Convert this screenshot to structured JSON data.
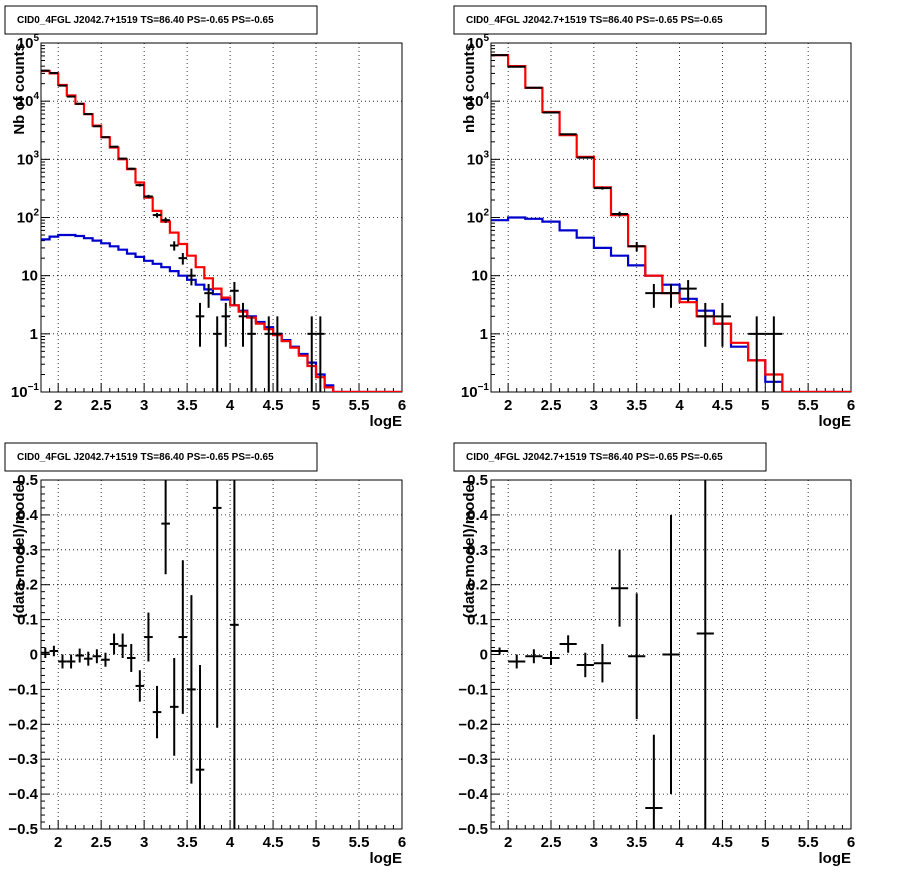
{
  "colors": {
    "data": "#000000",
    "model_total": "#ff0000",
    "model_background": "#0000cc",
    "grid": "#000000"
  },
  "chart_data": [
    {
      "type": "line",
      "panel": "top-left",
      "title": "CID0_4FGL J2042.7+1519 TS=86.40 PS=-0.65 PS=-0.65",
      "xlabel": "logE",
      "ylabel": "Nb of counts",
      "yscale": "log",
      "xlim": [
        1.8,
        6
      ],
      "ylim": [
        0.1,
        100000
      ],
      "grid": true,
      "xticks": [
        "2",
        "2.5",
        "3",
        "3.5",
        "4",
        "4.5",
        "5",
        "5.5",
        "6"
      ],
      "yticks": [
        {
          "value": 0.1,
          "label": "10",
          "sup": "−1"
        },
        {
          "value": 1,
          "label": "1",
          "sup": ""
        },
        {
          "value": 10,
          "label": "10",
          "sup": ""
        },
        {
          "value": 100,
          "label": "10",
          "sup": "2"
        },
        {
          "value": 1000,
          "label": "10",
          "sup": "3"
        },
        {
          "value": 10000,
          "label": "10",
          "sup": "4"
        },
        {
          "value": 100000,
          "label": "10",
          "sup": "5"
        }
      ],
      "bin_edges": [
        1.8,
        1.9,
        2.0,
        2.1,
        2.2,
        2.3,
        2.4,
        2.5,
        2.6,
        2.7,
        2.8,
        2.9,
        3.0,
        3.1,
        3.2,
        3.3,
        3.4,
        3.5,
        3.6,
        3.7,
        3.8,
        3.9,
        4.0,
        4.1,
        4.2,
        4.3,
        4.4,
        4.5,
        4.6,
        4.7,
        4.8,
        4.9,
        5.0,
        5.1,
        5.2,
        5.3,
        5.4,
        5.5,
        5.6,
        5.7,
        5.8,
        5.9,
        6.0
      ],
      "series": [
        {
          "role": "model_total",
          "style": "step",
          "values": [
            33000,
            30000,
            19000,
            12500,
            9000,
            6000,
            3800,
            2400,
            1600,
            1000,
            680,
            400,
            220,
            130,
            85,
            55,
            35,
            22,
            14,
            9,
            6,
            4.2,
            3.1,
            2.4,
            1.9,
            1.5,
            1.2,
            0.95,
            0.75,
            0.58,
            0.42,
            0.28,
            0.18,
            0.12,
            0.1,
            0.1,
            0.1,
            0.1,
            0.1,
            0.1,
            0.1,
            0.1
          ]
        },
        {
          "role": "model_background",
          "style": "step",
          "values": [
            42,
            47,
            50,
            50,
            48,
            44,
            40,
            36,
            32,
            28,
            24,
            21,
            18,
            16,
            14,
            12,
            10,
            8.5,
            7,
            5.8,
            4.8,
            3.9,
            3.1,
            2.5,
            2.0,
            1.6,
            1.3,
            1.0,
            0.78,
            0.6,
            0.45,
            0.32,
            0.2,
            0.13,
            0.1,
            0.1,
            0.1,
            0.1,
            0.1,
            0.1,
            0.1,
            0.1
          ]
        },
        {
          "role": "data",
          "style": "errorbar",
          "x": [
            1.85,
            1.95,
            2.05,
            2.15,
            2.25,
            2.35,
            2.45,
            2.55,
            2.65,
            2.75,
            2.85,
            2.95,
            3.05,
            3.15,
            3.25,
            3.35,
            3.45,
            3.55,
            3.65,
            3.75,
            3.85,
            3.95,
            4.05,
            4.15,
            4.25,
            4.45,
            4.55,
            4.95,
            5.05
          ],
          "y": [
            33500,
            30500,
            18500,
            12000,
            9000,
            6000,
            3700,
            2400,
            1650,
            1030,
            690,
            360,
            230,
            110,
            90,
            33,
            20,
            10,
            2,
            5,
            1,
            2,
            5.5,
            2,
            1,
            1,
            1,
            1,
            1
          ],
          "yerr_lo": [
            180,
            170,
            140,
            110,
            95,
            80,
            60,
            50,
            40,
            32,
            26,
            19,
            15,
            10,
            9,
            6,
            4.5,
            3.2,
            1.4,
            2.2,
            0.9,
            1.4,
            2.3,
            1.4,
            0.9,
            0.9,
            0.9,
            0.9,
            0.9
          ],
          "yerr_hi": [
            180,
            170,
            140,
            110,
            95,
            80,
            60,
            50,
            40,
            32,
            26,
            19,
            15,
            10,
            9,
            6,
            4.5,
            3.2,
            1.4,
            2.2,
            1.0,
            1.4,
            2.3,
            1.4,
            1.0,
            1.0,
            1.0,
            1.0,
            1.0
          ]
        }
      ]
    },
    {
      "type": "line",
      "panel": "top-right",
      "title": "CID0_4FGL J2042.7+1519 TS=86.40 PS=-0.65 PS=-0.65",
      "xlabel": "logE",
      "ylabel": "nb of counts",
      "yscale": "log",
      "xlim": [
        1.8,
        6
      ],
      "ylim": [
        0.1,
        100000
      ],
      "grid": true,
      "xticks": [
        "2",
        "2.5",
        "3",
        "3.5",
        "4",
        "4.5",
        "5",
        "5.5",
        "6"
      ],
      "yticks": [
        {
          "value": 0.1,
          "label": "10",
          "sup": "−1"
        },
        {
          "value": 1,
          "label": "1",
          "sup": ""
        },
        {
          "value": 10,
          "label": "10",
          "sup": ""
        },
        {
          "value": 100,
          "label": "10",
          "sup": "2"
        },
        {
          "value": 1000,
          "label": "10",
          "sup": "3"
        },
        {
          "value": 10000,
          "label": "10",
          "sup": "4"
        },
        {
          "value": 100000,
          "label": "10",
          "sup": "5"
        }
      ],
      "bin_edges": [
        1.8,
        2.0,
        2.2,
        2.4,
        2.6,
        2.8,
        3.0,
        3.2,
        3.4,
        3.6,
        3.8,
        4.0,
        4.2,
        4.4,
        4.6,
        4.8,
        5.0,
        5.2,
        5.4,
        5.6,
        5.8,
        6.0
      ],
      "series": [
        {
          "role": "model_total",
          "style": "step",
          "values": [
            62000,
            40000,
            17000,
            6500,
            2600,
            1100,
            330,
            110,
            32,
            10,
            5,
            3.5,
            2.0,
            1.5,
            0.7,
            0.35,
            0.2,
            0.1,
            0.1,
            0.1,
            0.1
          ]
        },
        {
          "role": "model_background",
          "style": "step",
          "values": [
            90,
            100,
            95,
            85,
            60,
            45,
            30,
            22,
            15,
            10,
            7,
            4,
            2.5,
            1.5,
            0.6,
            0.35,
            0.15,
            0.1,
            0.1,
            0.1,
            0.1
          ]
        },
        {
          "role": "data",
          "style": "errorbar",
          "x": [
            1.9,
            2.1,
            2.3,
            2.5,
            2.7,
            2.9,
            3.1,
            3.3,
            3.5,
            3.7,
            3.9,
            4.1,
            4.3,
            4.5,
            4.9,
            5.1
          ],
          "y": [
            62000,
            39000,
            17000,
            6400,
            2700,
            1070,
            320,
            115,
            32,
            5,
            5,
            6,
            2,
            2,
            1,
            1
          ],
          "yerr_lo": [
            250,
            200,
            130,
            80,
            52,
            33,
            18,
            11,
            6,
            2.2,
            2.2,
            2.4,
            1.4,
            1.4,
            0.9,
            0.9
          ],
          "yerr_hi": [
            250,
            200,
            130,
            80,
            52,
            33,
            18,
            11,
            6,
            2.2,
            2.2,
            2.4,
            1.4,
            1.4,
            1.0,
            1.0
          ]
        }
      ]
    },
    {
      "type": "scatter",
      "panel": "bottom-left",
      "title": "CID0_4FGL J2042.7+1519 TS=86.40 PS=-0.65 PS=-0.65",
      "xlabel": "logE",
      "ylabel": "(data-model)/model",
      "yscale": "linear",
      "xlim": [
        1.8,
        6
      ],
      "ylim": [
        -0.5,
        0.5
      ],
      "grid": true,
      "xticks": [
        "2",
        "2.5",
        "3",
        "3.5",
        "4",
        "4.5",
        "5",
        "5.5",
        "6"
      ],
      "yticks": [
        {
          "value": -0.5,
          "label": "−0.5"
        },
        {
          "value": -0.4,
          "label": "−0.4"
        },
        {
          "value": -0.3,
          "label": "−0.3"
        },
        {
          "value": -0.2,
          "label": "−0.2"
        },
        {
          "value": -0.1,
          "label": "−0.1"
        },
        {
          "value": 0,
          "label": "0"
        },
        {
          "value": 0.1,
          "label": "0.1"
        },
        {
          "value": 0.2,
          "label": "0.2"
        },
        {
          "value": 0.3,
          "label": "0.3"
        },
        {
          "value": 0.4,
          "label": "0.4"
        },
        {
          "value": 0.5,
          "label": "0.5"
        }
      ],
      "xerr": 0.05,
      "points": [
        {
          "x": 1.85,
          "y": 0.005,
          "yerr": 0.015
        },
        {
          "x": 1.95,
          "y": 0.01,
          "yerr": 0.015
        },
        {
          "x": 2.05,
          "y": -0.02,
          "yerr": 0.02
        },
        {
          "x": 2.15,
          "y": -0.02,
          "yerr": 0.02
        },
        {
          "x": 2.25,
          "y": -0.003,
          "yerr": 0.02
        },
        {
          "x": 2.35,
          "y": -0.012,
          "yerr": 0.02
        },
        {
          "x": 2.45,
          "y": -0.005,
          "yerr": 0.02
        },
        {
          "x": 2.55,
          "y": -0.015,
          "yerr": 0.02
        },
        {
          "x": 2.65,
          "y": 0.03,
          "yerr": 0.03
        },
        {
          "x": 2.75,
          "y": 0.025,
          "yerr": 0.035
        },
        {
          "x": 2.85,
          "y": -0.01,
          "yerr": 0.04
        },
        {
          "x": 2.95,
          "y": -0.09,
          "yerr": 0.045
        },
        {
          "x": 3.05,
          "y": 0.05,
          "yerr": 0.07
        },
        {
          "x": 3.15,
          "y": -0.165,
          "yerr": 0.075
        },
        {
          "x": 3.25,
          "y": 0.375,
          "yerr": 0.145
        },
        {
          "x": 3.35,
          "y": -0.15,
          "yerr": 0.14
        },
        {
          "x": 3.45,
          "y": 0.05,
          "yerr": 0.22
        },
        {
          "x": 3.55,
          "y": -0.1,
          "yerr": 0.27
        },
        {
          "x": 3.65,
          "y": -0.33,
          "yerr": 0.3
        },
        {
          "x": 3.85,
          "y": 0.42,
          "yerr": 0.63
        },
        {
          "x": 4.05,
          "y": 0.085,
          "yerr": 0.85
        }
      ]
    },
    {
      "type": "scatter",
      "panel": "bottom-right",
      "title": "CID0_4FGL J2042.7+1519 TS=86.40 PS=-0.65 PS=-0.65",
      "xlabel": "logE",
      "ylabel": "(data-model)/model",
      "yscale": "linear",
      "xlim": [
        1.8,
        6
      ],
      "ylim": [
        -0.5,
        0.5
      ],
      "grid": true,
      "xticks": [
        "2",
        "2.5",
        "3",
        "3.5",
        "4",
        "4.5",
        "5",
        "5.5",
        "6"
      ],
      "yticks": [
        {
          "value": -0.5,
          "label": "−0.5"
        },
        {
          "value": -0.4,
          "label": "−0.4"
        },
        {
          "value": -0.3,
          "label": "−0.3"
        },
        {
          "value": -0.2,
          "label": "−0.2"
        },
        {
          "value": -0.1,
          "label": "−0.1"
        },
        {
          "value": 0,
          "label": "0"
        },
        {
          "value": 0.1,
          "label": "0.1"
        },
        {
          "value": 0.2,
          "label": "0.2"
        },
        {
          "value": 0.3,
          "label": "0.3"
        },
        {
          "value": 0.4,
          "label": "0.4"
        },
        {
          "value": 0.5,
          "label": "0.5"
        }
      ],
      "xerr": 0.1,
      "points": [
        {
          "x": 1.9,
          "y": 0.01,
          "yerr": 0.01
        },
        {
          "x": 2.1,
          "y": -0.02,
          "yerr": 0.02
        },
        {
          "x": 2.3,
          "y": -0.005,
          "yerr": 0.02
        },
        {
          "x": 2.5,
          "y": -0.01,
          "yerr": 0.02
        },
        {
          "x": 2.7,
          "y": 0.03,
          "yerr": 0.025
        },
        {
          "x": 2.9,
          "y": -0.03,
          "yerr": 0.035
        },
        {
          "x": 3.1,
          "y": -0.025,
          "yerr": 0.055
        },
        {
          "x": 3.3,
          "y": 0.19,
          "yerr": 0.11
        },
        {
          "x": 3.5,
          "y": -0.005,
          "yerr": 0.18
        },
        {
          "x": 3.7,
          "y": -0.44,
          "yerr": 0.21
        },
        {
          "x": 3.9,
          "y": 0.0,
          "yerr": 0.4
        },
        {
          "x": 4.3,
          "y": 0.06,
          "yerr": 0.95
        }
      ]
    }
  ]
}
